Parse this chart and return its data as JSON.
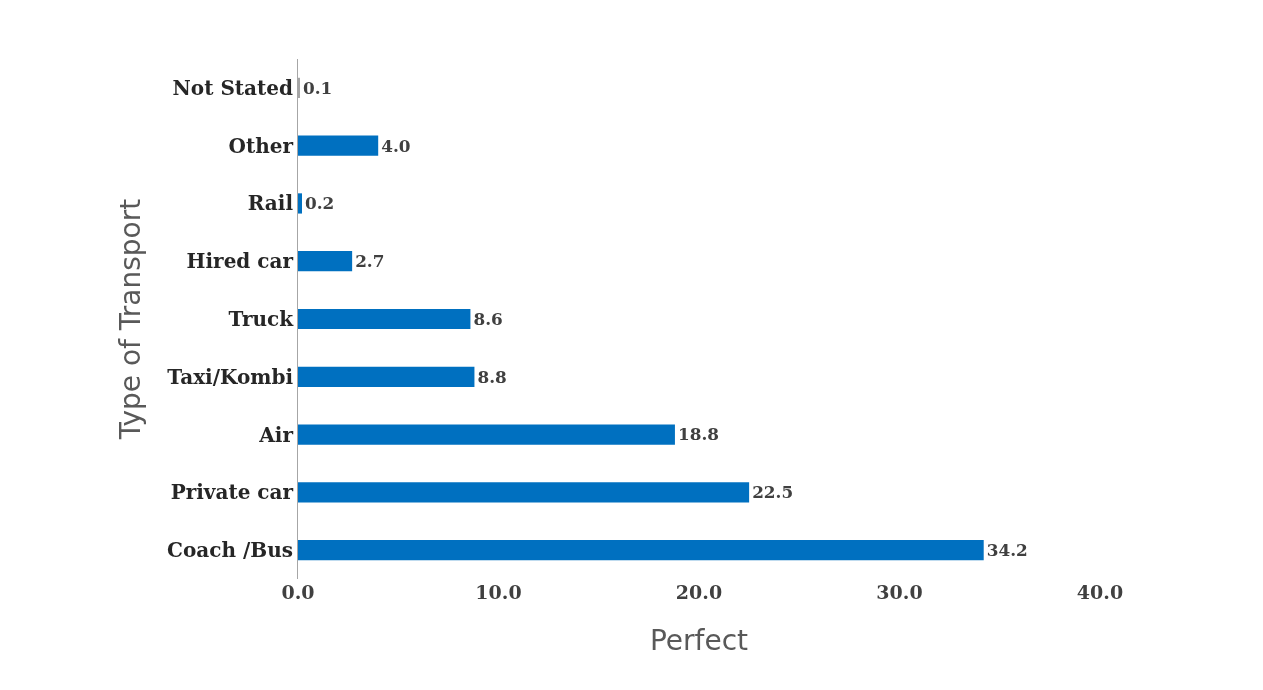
{
  "chart_data": {
    "type": "bar",
    "orientation": "horizontal",
    "xlabel": "Perfect",
    "ylabel": "Type of Transport",
    "categories": [
      "Not Stated",
      "Other",
      "Rail",
      "Hired car",
      "Truck",
      "Taxi/Kombi",
      "Air",
      "Private car",
      "Coach /Bus"
    ],
    "values": [
      0.1,
      4.0,
      0.2,
      2.7,
      8.6,
      8.8,
      18.8,
      22.5,
      34.2
    ],
    "value_labels": [
      "0.1",
      "4.0",
      "0.2",
      "2.7",
      "8.6",
      "8.8",
      "18.8",
      "22.5",
      "34.2"
    ],
    "colors": [
      "#a5a5a5",
      "#0070c0",
      "#0070c0",
      "#0070c0",
      "#0070c0",
      "#0070c0",
      "#0070c0",
      "#0070c0",
      "#0070c0"
    ],
    "xlim": [
      0,
      40
    ],
    "xticks": [
      {
        "value": 0,
        "label": "0.0"
      },
      {
        "value": 10,
        "label": "10.0"
      },
      {
        "value": 20,
        "label": "20.0"
      },
      {
        "value": 30,
        "label": "30.0"
      },
      {
        "value": 40,
        "label": "40.0"
      }
    ],
    "grid": false,
    "legend": false
  }
}
